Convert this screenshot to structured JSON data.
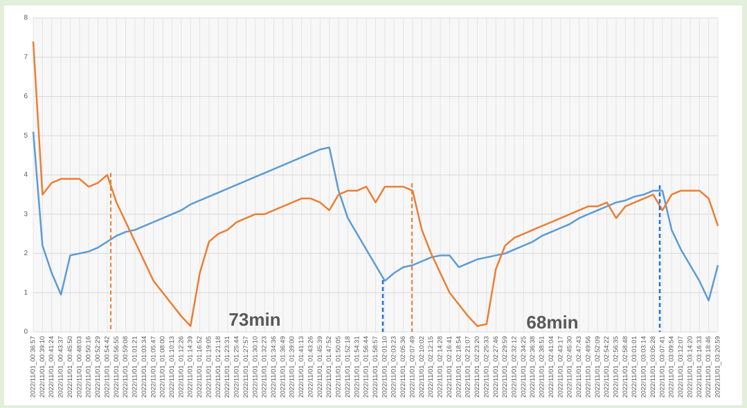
{
  "chart_data": {
    "type": "line",
    "categories": [
      "2022/11/01_00:36:57",
      "2022/11/01_00:39:10",
      "2022/11/01_00:41:24",
      "2022/11/01_00:43:37",
      "2022/11/01_00:45:50",
      "2022/11/01_00:48:03",
      "2022/11/01_00:50:16",
      "2022/11/01_00:52:29",
      "2022/11/01_00:54:42",
      "2022/11/01_00:56:55",
      "2022/11/01_00:59:08",
      "2022/11/01_01:01:21",
      "2022/11/01_01:03:34",
      "2022/11/01_01:05:47",
      "2022/11/01_01:08:00",
      "2022/11/01_01:10:13",
      "2022/11/01_01:12:26",
      "2022/11/01_01:14:39",
      "2022/11/01_01:16:52",
      "2022/11/01_01:19:05",
      "2022/11/01_01:21:18",
      "2022/11/01_01:23:31",
      "2022/11/01_01:25:44",
      "2022/11/01_01:27:57",
      "2022/11/01_01:30:10",
      "2022/11/01_01:32:23",
      "2022/11/01_01:34:36",
      "2022/11/01_01:36:49",
      "2022/11/01_01:39:00",
      "2022/11/01_01:41:13",
      "2022/11/01_01:43:26",
      "2022/11/01_01:45:39",
      "2022/11/01_01:47:52",
      "2022/11/01_01:50:05",
      "2022/11/01_01:52:18",
      "2022/11/01_01:54:31",
      "2022/11/01_01:56:44",
      "2022/11/01_01:58:57",
      "2022/11/01_02:01:10",
      "2022/11/01_02:03:23",
      "2022/11/01_02:05:36",
      "2022/11/01_02:07:49",
      "2022/11/01_02:10:02",
      "2022/11/01_02:12:15",
      "2022/11/01_02:14:28",
      "2022/11/01_02:16:41",
      "2022/11/01_02:18:54",
      "2022/11/01_02:21:07",
      "2022/11/01_02:23:20",
      "2022/11/01_02:25:33",
      "2022/11/01_02:27:46",
      "2022/11/01_02:29:59",
      "2022/11/01_02:32:12",
      "2022/11/01_02:34:25",
      "2022/11/01_02:36:38",
      "2022/11/01_02:38:51",
      "2022/11/01_02:41:04",
      "2022/11/01_02:43:17",
      "2022/11/01_02:45:30",
      "2022/11/01_02:47:43",
      "2022/11/01_02:49:56",
      "2022/11/01_02:52:09",
      "2022/11/01_02:54:22",
      "2022/11/01_02:56:35",
      "2022/11/01_02:58:48",
      "2022/11/01_03:01:01",
      "2022/11/01_03:03:14",
      "2022/11/01_03:05:28",
      "2022/11/01_03:07:41",
      "2022/11/01_03:09:54",
      "2022/11/01_03:12:07",
      "2022/11/01_03:14:20",
      "2022/11/01_03:16:33",
      "2022/11/01_03:18:46",
      "2022/11/01_03:20:59"
    ],
    "series": [
      {
        "color": "#5b9bd5",
        "values": [
          5.1,
          2.2,
          1.5,
          0.95,
          1.95,
          2.0,
          2.05,
          2.15,
          2.3,
          2.45,
          2.55,
          2.6,
          2.7,
          2.8,
          2.9,
          3.0,
          3.1,
          3.25,
          3.35,
          3.45,
          3.55,
          3.65,
          3.75,
          3.85,
          3.95,
          4.05,
          4.15,
          4.25,
          4.35,
          4.45,
          4.55,
          4.65,
          4.7,
          3.6,
          2.9,
          2.5,
          2.1,
          1.7,
          1.3,
          1.5,
          1.65,
          1.7,
          1.8,
          1.9,
          1.95,
          1.95,
          1.65,
          1.75,
          1.85,
          1.9,
          1.95,
          2.0,
          2.1,
          2.2,
          2.3,
          2.45,
          2.55,
          2.65,
          2.75,
          2.9,
          3.0,
          3.1,
          3.2,
          3.3,
          3.35,
          3.45,
          3.5,
          3.6,
          3.6,
          2.6,
          2.1,
          1.7,
          1.3,
          0.8,
          1.7
        ]
      },
      {
        "color": "#ed7d31",
        "values": [
          7.4,
          3.5,
          3.8,
          3.9,
          3.9,
          3.9,
          3.7,
          3.8,
          4.0,
          3.3,
          2.8,
          2.3,
          1.8,
          1.3,
          1.0,
          0.7,
          0.4,
          0.15,
          1.5,
          2.3,
          2.5,
          2.6,
          2.8,
          2.9,
          3.0,
          3.0,
          3.1,
          3.2,
          3.3,
          3.4,
          3.4,
          3.3,
          3.1,
          3.5,
          3.6,
          3.6,
          3.7,
          3.3,
          3.7,
          3.7,
          3.7,
          3.6,
          2.6,
          2.0,
          1.5,
          1.0,
          0.7,
          0.4,
          0.15,
          0.2,
          1.6,
          2.2,
          2.4,
          2.5,
          2.6,
          2.7,
          2.8,
          2.9,
          3.0,
          3.1,
          3.2,
          3.2,
          3.3,
          2.9,
          3.2,
          3.3,
          3.4,
          3.5,
          3.1,
          3.5,
          3.6,
          3.6,
          3.6,
          3.4,
          2.7
        ]
      }
    ],
    "ylim": [
      0,
      8
    ],
    "yticks": [
      0,
      1,
      2,
      3,
      4,
      5,
      6,
      7,
      8
    ],
    "grid": true,
    "annotations": [
      {
        "text": "73min",
        "color": "#ed7d31"
      },
      {
        "text": "68min",
        "color": "#6f8ff2"
      }
    ]
  }
}
